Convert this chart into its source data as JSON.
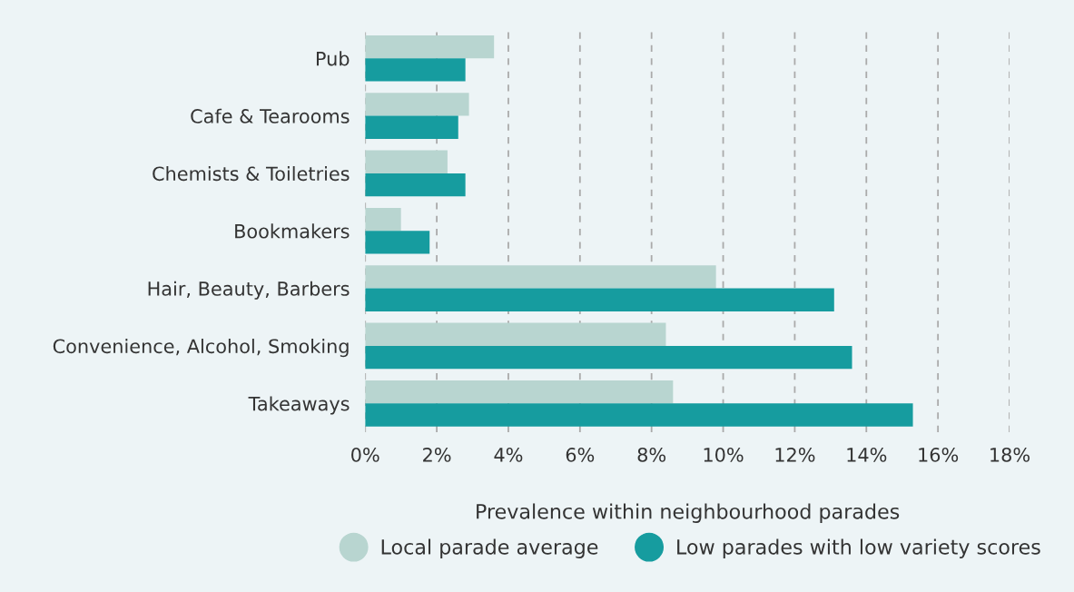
{
  "chart_data": {
    "type": "bar",
    "orientation": "horizontal",
    "xlabel": "Prevalence within neighbourhood parades",
    "categories": [
      "Pub",
      "Cafe & Tearooms",
      "Chemists & Toiletries",
      "Bookmakers",
      "Hair, Beauty, Barbers",
      "Convenience, Alcohol, Smoking",
      "Takeaways"
    ],
    "series": [
      {
        "name": "Local parade average",
        "color": "#b8d5d0",
        "values": [
          3.6,
          2.9,
          2.3,
          1.0,
          9.8,
          8.4,
          8.6
        ]
      },
      {
        "name": "Low parades with low variety scores",
        "color": "#169c9f",
        "values": [
          2.8,
          2.6,
          2.8,
          1.8,
          13.1,
          13.6,
          15.3
        ]
      }
    ],
    "xlim": [
      0,
      18
    ],
    "xticks": [
      {
        "value": 0,
        "label": "0%"
      },
      {
        "value": 2,
        "label": "2%"
      },
      {
        "value": 4,
        "label": "4%"
      },
      {
        "value": 6,
        "label": "6%"
      },
      {
        "value": 8,
        "label": "8%"
      },
      {
        "value": 10,
        "label": "10%"
      },
      {
        "value": 12,
        "label": "12%"
      },
      {
        "value": 14,
        "label": "14%"
      },
      {
        "value": 16,
        "label": "16%"
      },
      {
        "value": 18,
        "label": "18%"
      }
    ],
    "grid": "x",
    "line_style": "dashed",
    "legend": "bottom",
    "marker": "circle"
  }
}
